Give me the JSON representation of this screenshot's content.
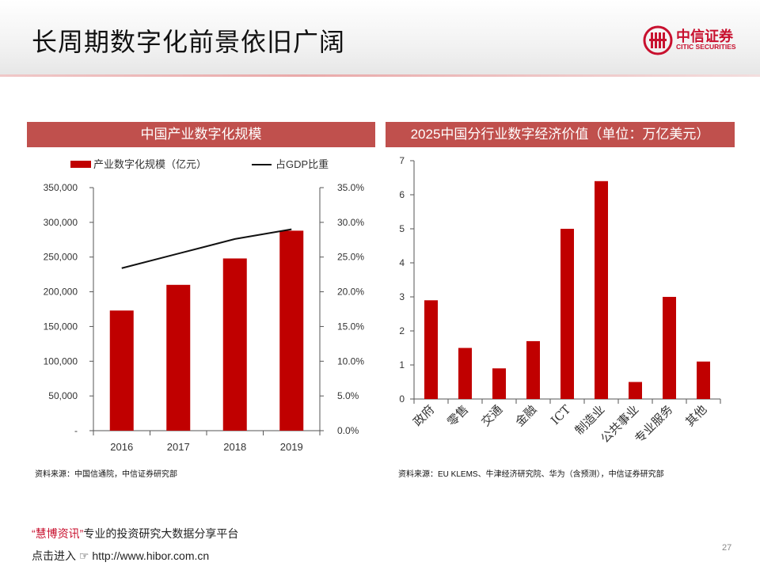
{
  "header": {
    "title": "长周期数字化前景依旧广阔"
  },
  "logo": {
    "cn": "中信证券",
    "en": "CITIC SECURITIES"
  },
  "left_panel": {
    "title": "中国产业数字化规模",
    "source": "资料来源：中国信通院，中信证券研究部"
  },
  "right_panel": {
    "title": "2025中国分行业数字经济价值（单位：万亿美元）",
    "source": "资料来源：EU KLEMS、牛津经济研究院、华为（含预测），中信证券研究部"
  },
  "footer": {
    "quote_open": "“",
    "brand": "慧博资讯",
    "quote_close": "”",
    "slogan": "专业的投资研究大数据分享平台",
    "enter_text": "点击进入",
    "url": "http://www.hibor.com.cn",
    "page_number": "27"
  },
  "colors": {
    "accent": "#c8102e",
    "bar": "#c00000",
    "panel_header": "#c0504d",
    "line": "#111111"
  },
  "chart_data": [
    {
      "type": "bar+line",
      "title": "中国产业数字化规模",
      "categories": [
        "2016",
        "2017",
        "2018",
        "2019"
      ],
      "series": [
        {
          "name": "产业数字化规模（亿元）",
          "type": "bar",
          "axis": "left",
          "values": [
            173000,
            210000,
            248000,
            288000
          ]
        },
        {
          "name": "占GDP比重",
          "type": "line",
          "axis": "right",
          "values": [
            23.4,
            25.5,
            27.6,
            29.0
          ]
        }
      ],
      "y_left": {
        "range": [
          0,
          350000
        ],
        "ticks": [
          "-",
          "50,000",
          "100,000",
          "150,000",
          "200,000",
          "250,000",
          "300,000",
          "350,000"
        ]
      },
      "y_right": {
        "range": [
          0,
          35
        ],
        "ticks": [
          "0.0%",
          "5.0%",
          "10.0%",
          "15.0%",
          "20.0%",
          "25.0%",
          "30.0%",
          "35.0%"
        ]
      },
      "legend_position": "top",
      "grid": false
    },
    {
      "type": "bar",
      "title": "2025中国分行业数字经济价值（单位：万亿美元）",
      "categories": [
        "政府",
        "零售",
        "交通",
        "金融",
        "ICT",
        "制造业",
        "公共事业",
        "专业服务",
        "其他"
      ],
      "values": [
        2.9,
        1.5,
        0.9,
        1.7,
        5.0,
        6.4,
        0.5,
        3.0,
        1.1
      ],
      "ylim": [
        0,
        7
      ],
      "y_ticks": [
        "0",
        "1",
        "2",
        "3",
        "4",
        "5",
        "6",
        "7"
      ],
      "grid": false
    }
  ]
}
